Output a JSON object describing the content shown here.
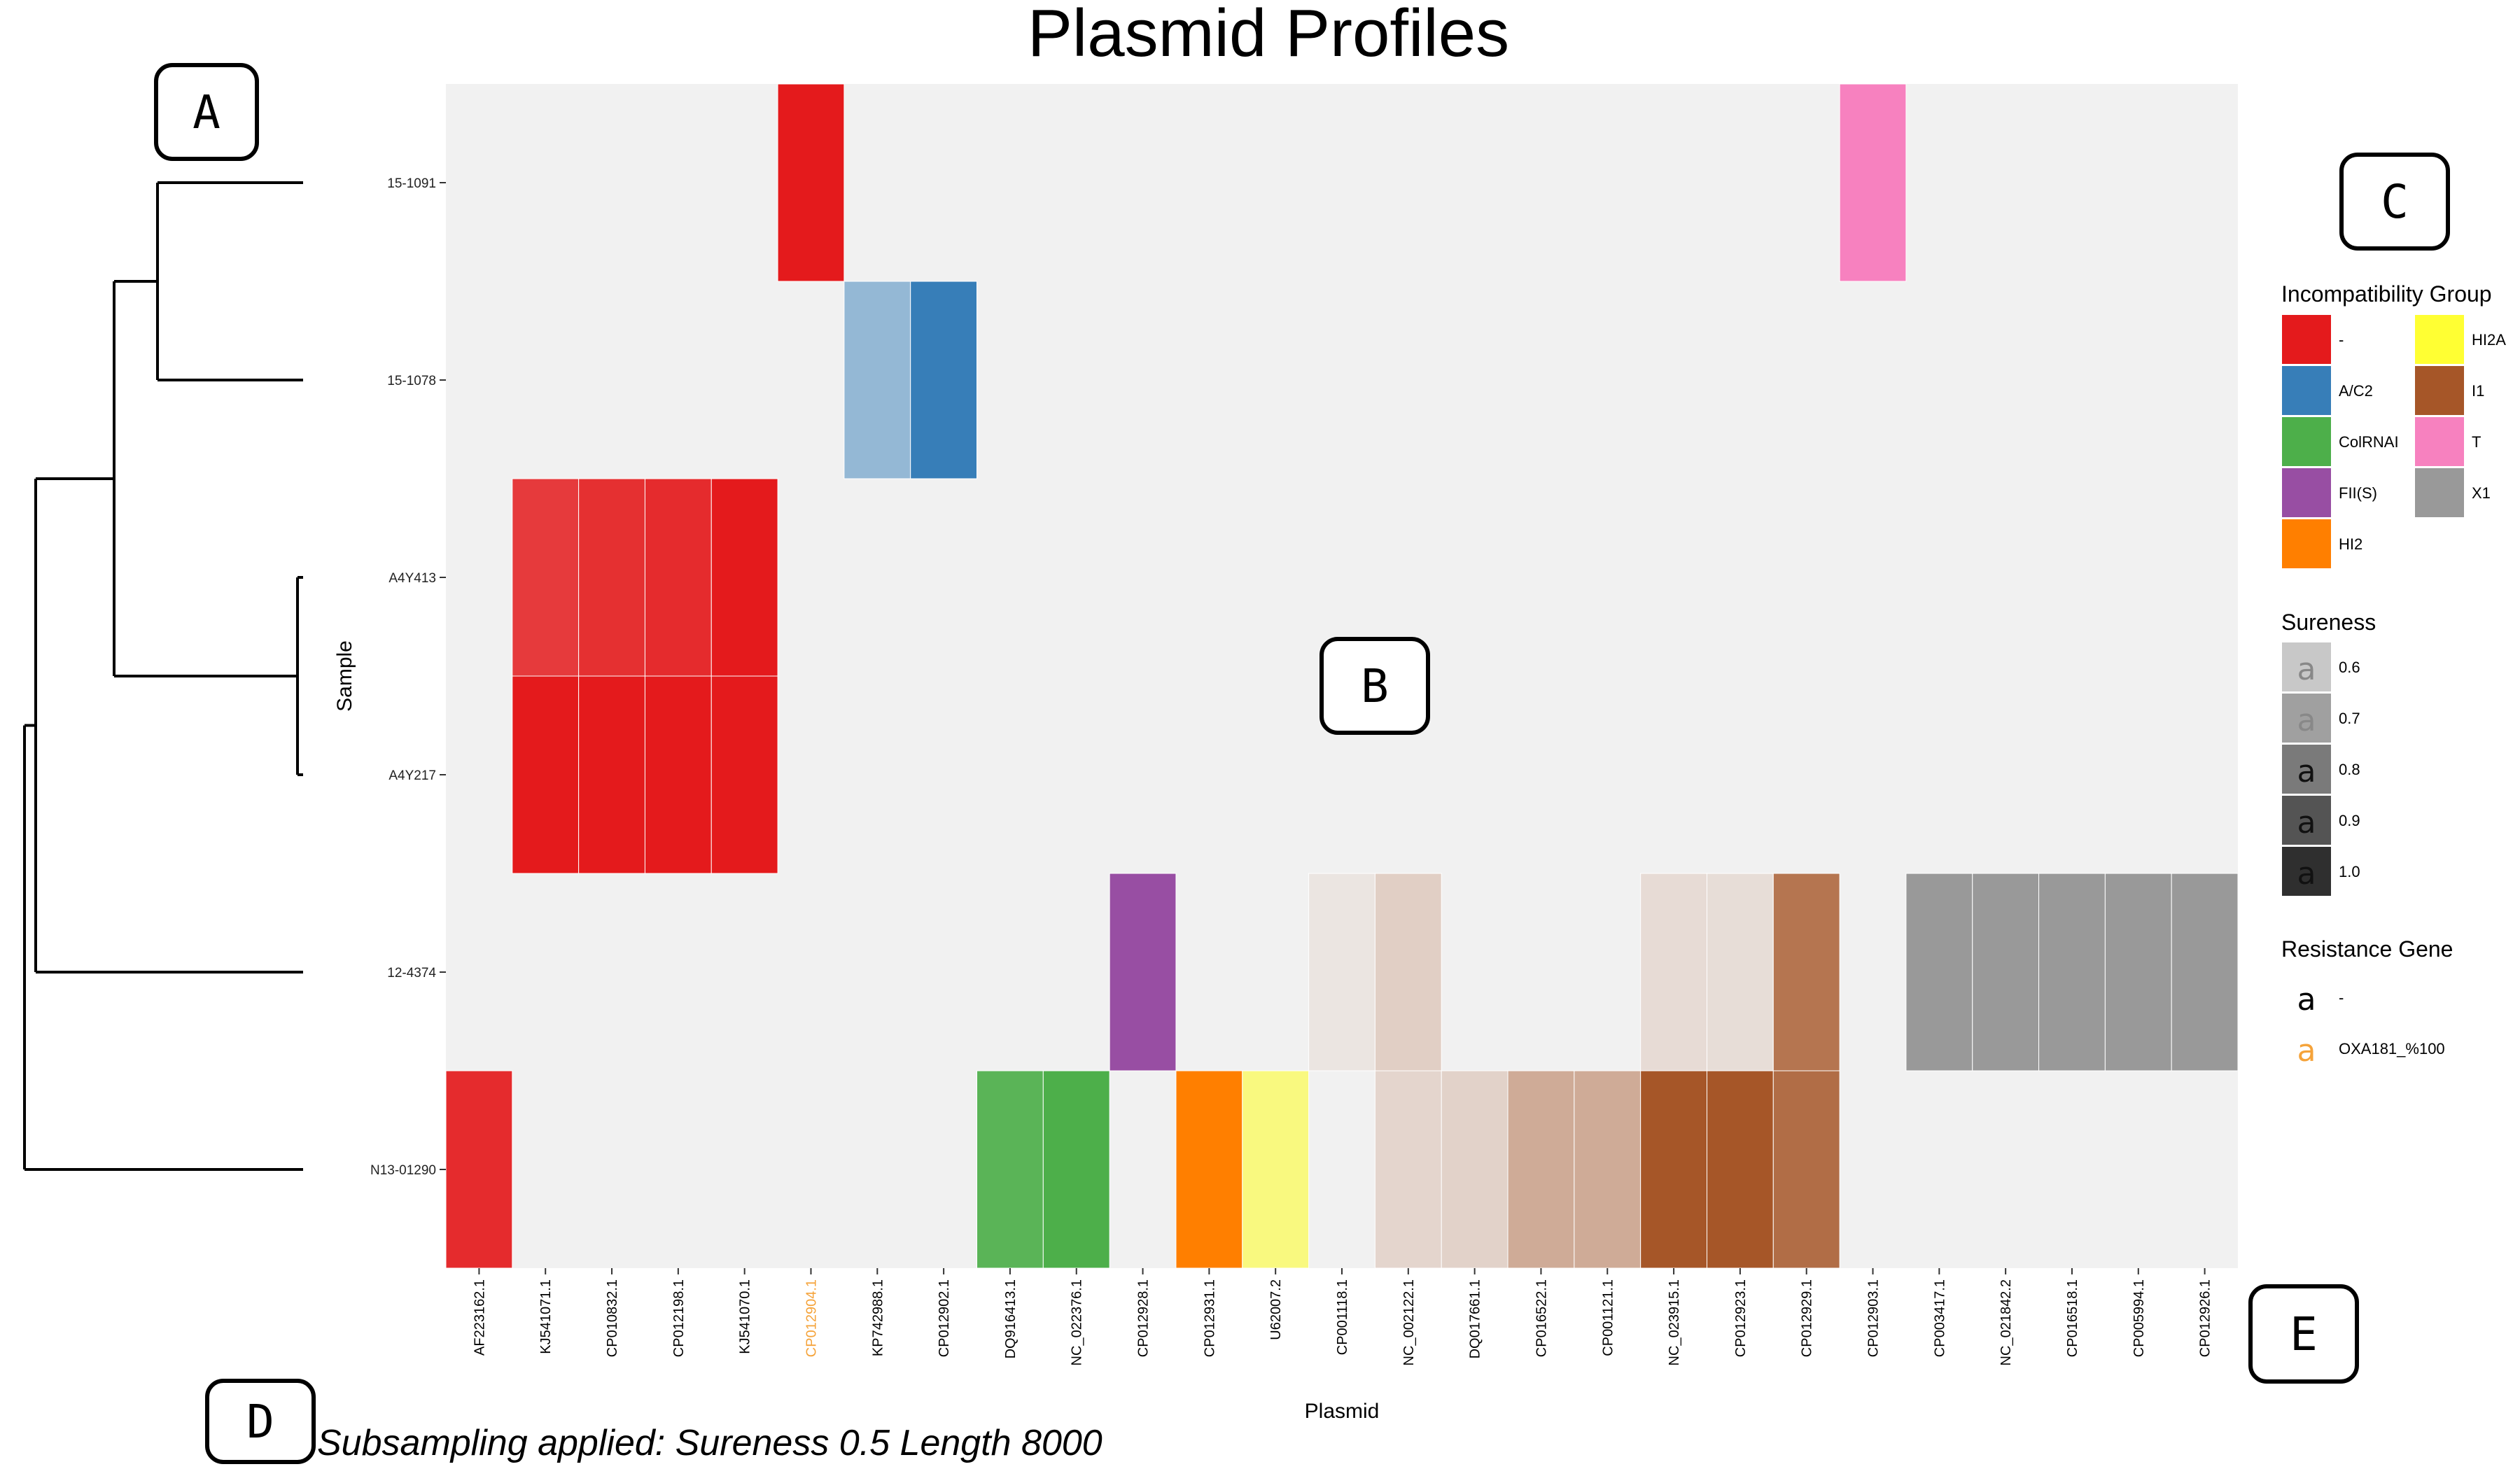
{
  "chart_data": {
    "type": "heatmap",
    "title": "Plasmid Profiles",
    "xlabel": "Plasmid",
    "ylabel": "Sample",
    "samples": [
      "15-1091",
      "15-1078",
      "A4Y413",
      "A4Y217",
      "12-4374",
      "N13-01290"
    ],
    "plasmids": [
      "AF223162.1",
      "KJ541071.1",
      "CP010832.1",
      "CP012198.1",
      "KJ541070.1",
      "CP012904.1",
      "KP742988.1",
      "CP012902.1",
      "DQ916413.1",
      "NC_022376.1",
      "CP012928.1",
      "CP012931.1",
      "U62007.2",
      "CP001118.1",
      "NC_002122.1",
      "DQ017661.1",
      "CP016522.1",
      "CP001121.1",
      "NC_023915.1",
      "CP012923.1",
      "CP012929.1",
      "CP012903.1",
      "CP003417.1",
      "NC_021842.2",
      "CP016518.1",
      "CP005994.1",
      "CP012926.1"
    ],
    "plasmid_label_colors": [
      "#000000",
      "#000000",
      "#000000",
      "#000000",
      "#000000",
      "#f5a33a",
      "#000000",
      "#000000",
      "#000000",
      "#000000",
      "#000000",
      "#000000",
      "#000000",
      "#000000",
      "#000000",
      "#000000",
      "#000000",
      "#000000",
      "#000000",
      "#000000",
      "#000000",
      "#000000",
      "#000000",
      "#000000",
      "#000000",
      "#000000",
      "#000000"
    ],
    "cells": [
      {
        "sample": "15-1091",
        "plasmid": "CP012904.1",
        "group": "-",
        "sureness": 1.0
      },
      {
        "sample": "15-1091",
        "plasmid": "CP012903.1",
        "group": "T",
        "sureness": 1.0
      },
      {
        "sample": "15-1078",
        "plasmid": "KP742988.1",
        "group": "A/C2",
        "sureness": 0.5
      },
      {
        "sample": "15-1078",
        "plasmid": "CP012902.1",
        "group": "A/C2",
        "sureness": 1.0
      },
      {
        "sample": "A4Y413",
        "plasmid": "KJ541071.1",
        "group": "-",
        "sureness": 0.85
      },
      {
        "sample": "A4Y413",
        "plasmid": "CP010832.1",
        "group": "-",
        "sureness": 0.9
      },
      {
        "sample": "A4Y413",
        "plasmid": "CP012198.1",
        "group": "-",
        "sureness": 0.92
      },
      {
        "sample": "A4Y413",
        "plasmid": "KJ541070.1",
        "group": "-",
        "sureness": 1.0
      },
      {
        "sample": "A4Y217",
        "plasmid": "KJ541071.1",
        "group": "-",
        "sureness": 1.0
      },
      {
        "sample": "A4Y217",
        "plasmid": "CP010832.1",
        "group": "-",
        "sureness": 1.0
      },
      {
        "sample": "A4Y217",
        "plasmid": "CP012198.1",
        "group": "-",
        "sureness": 1.0
      },
      {
        "sample": "A4Y217",
        "plasmid": "KJ541070.1",
        "group": "-",
        "sureness": 1.0
      },
      {
        "sample": "12-4374",
        "plasmid": "CP012928.1",
        "group": "FII(S)",
        "sureness": 1.0
      },
      {
        "sample": "12-4374",
        "plasmid": "CP001118.1",
        "group": "I1",
        "sureness": 0.08
      },
      {
        "sample": "12-4374",
        "plasmid": "NC_002122.1",
        "group": "I1",
        "sureness": 0.22
      },
      {
        "sample": "12-4374",
        "plasmid": "NC_023915.1",
        "group": "I1",
        "sureness": 0.14
      },
      {
        "sample": "12-4374",
        "plasmid": "CP012923.1",
        "group": "I1",
        "sureness": 0.13
      },
      {
        "sample": "12-4374",
        "plasmid": "CP012929.1",
        "group": "I1",
        "sureness": 0.8
      },
      {
        "sample": "12-4374",
        "plasmid": "CP003417.1",
        "group": "X1",
        "sureness": 1.0
      },
      {
        "sample": "12-4374",
        "plasmid": "NC_021842.2",
        "group": "X1",
        "sureness": 1.0
      },
      {
        "sample": "12-4374",
        "plasmid": "CP016518.1",
        "group": "X1",
        "sureness": 1.0
      },
      {
        "sample": "12-4374",
        "plasmid": "CP005994.1",
        "group": "X1",
        "sureness": 1.0
      },
      {
        "sample": "12-4374",
        "plasmid": "CP012926.1",
        "group": "X1",
        "sureness": 1.0
      },
      {
        "sample": "N13-01290",
        "plasmid": "AF223162.1",
        "group": "-",
        "sureness": 0.92
      },
      {
        "sample": "N13-01290",
        "plasmid": "DQ916413.1",
        "group": "ColRNAI",
        "sureness": 0.92
      },
      {
        "sample": "N13-01290",
        "plasmid": "NC_022376.1",
        "group": "ColRNAI",
        "sureness": 1.0
      },
      {
        "sample": "N13-01290",
        "plasmid": "CP012931.1",
        "group": "HI2",
        "sureness": 1.0
      },
      {
        "sample": "N13-01290",
        "plasmid": "U62007.2",
        "group": "HI2A",
        "sureness": 0.6
      },
      {
        "sample": "N13-01290",
        "plasmid": "NC_002122.1",
        "group": "I1",
        "sureness": 0.18
      },
      {
        "sample": "N13-01290",
        "plasmid": "DQ017661.1",
        "group": "I1",
        "sureness": 0.2
      },
      {
        "sample": "N13-01290",
        "plasmid": "CP016522.1",
        "group": "I1",
        "sureness": 0.45
      },
      {
        "sample": "N13-01290",
        "plasmid": "CP001121.1",
        "group": "I1",
        "sureness": 0.45
      },
      {
        "sample": "N13-01290",
        "plasmid": "NC_023915.1",
        "group": "I1",
        "sureness": 1.0
      },
      {
        "sample": "N13-01290",
        "plasmid": "CP012923.1",
        "group": "I1",
        "sureness": 1.0
      },
      {
        "sample": "N13-01290",
        "plasmid": "CP012929.1",
        "group": "I1",
        "sureness": 0.85
      }
    ],
    "legend": {
      "incompatibility": {
        "title": "Incompatibility Group",
        "items": [
          {
            "label": "-",
            "color": "#e41a1c"
          },
          {
            "label": "A/C2",
            "color": "#377eb8"
          },
          {
            "label": "ColRNAI",
            "color": "#4daf4a"
          },
          {
            "label": "FII(S)",
            "color": "#984ea3"
          },
          {
            "label": "HI2",
            "color": "#ff7f00"
          },
          {
            "label": "HI2A",
            "color": "#ffff33"
          },
          {
            "label": "I1",
            "color": "#a65628"
          },
          {
            "label": "T",
            "color": "#f781bf"
          },
          {
            "label": "X1",
            "color": "#999999"
          }
        ]
      },
      "sureness": {
        "title": "Sureness",
        "items": [
          {
            "label": "0.6",
            "color": "#c8c8c8",
            "glyph": "a"
          },
          {
            "label": "0.7",
            "color": "#a0a0a0",
            "glyph": "a"
          },
          {
            "label": "0.8",
            "color": "#7a7a7a",
            "glyph": "a"
          },
          {
            "label": "0.9",
            "color": "#545454",
            "glyph": "a"
          },
          {
            "label": "1.0",
            "color": "#2f2f2f",
            "glyph": "a"
          }
        ]
      },
      "resistance": {
        "title": "Resistance Gene",
        "items": [
          {
            "label": "-",
            "color": "#000000",
            "glyph": "a"
          },
          {
            "label": "OXA181_%100",
            "color": "#f5a33a",
            "glyph": "a"
          }
        ]
      }
    }
  },
  "panel_labels": {
    "a": "A",
    "b": "B",
    "c": "C",
    "d": "D",
    "e": "E"
  },
  "footnote": "Subsampling applied: Sureness 0.5 Length 8000"
}
